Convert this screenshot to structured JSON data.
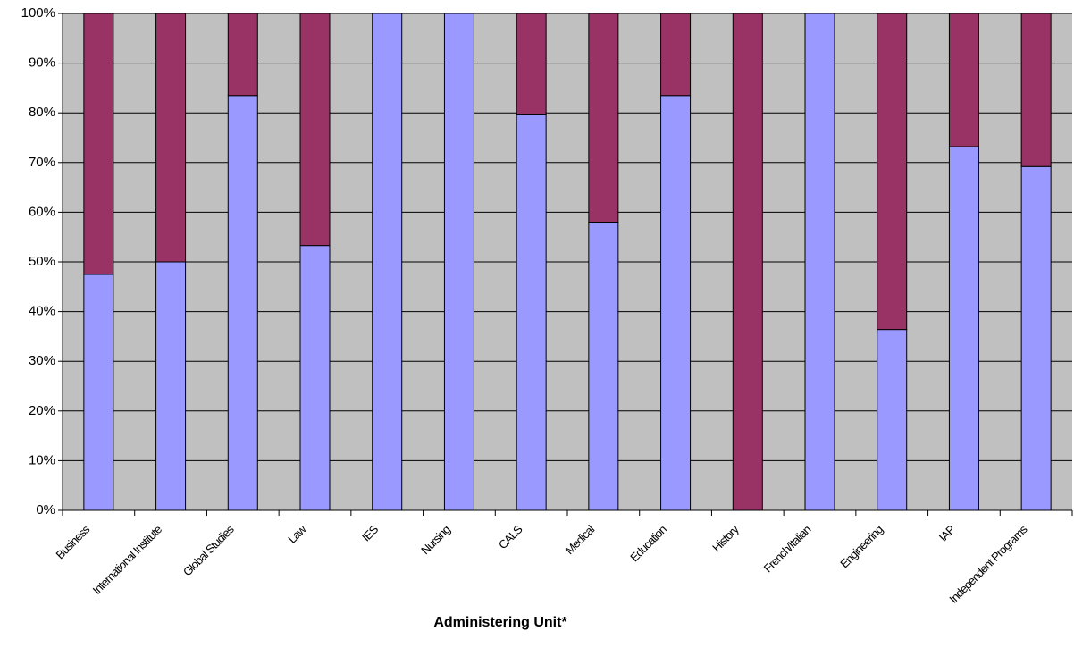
{
  "chart_data": {
    "type": "stacked-bar",
    "x_label": "Administering Unit*",
    "categories": [
      "Business",
      "International Institute",
      "Global Studies",
      "Law",
      "IES",
      "Nursing",
      "CALS",
      "Medical",
      "Education",
      "History",
      "French/Italian",
      "Engineering",
      "IAP",
      "Independent Programs"
    ],
    "series": [
      {
        "color": "#9999ff",
        "values": [
          47.5,
          50,
          83.5,
          53.3,
          100,
          100,
          79.6,
          58,
          83.5,
          0,
          100,
          36.4,
          73.2,
          69.2
        ]
      },
      {
        "color": "#993366",
        "values": [
          52.5,
          50,
          16.5,
          46.7,
          0,
          0,
          20.4,
          42,
          16.5,
          100,
          0,
          63.6,
          26.8,
          30.8
        ]
      }
    ],
    "ylim": [
      0,
      100
    ],
    "yticks": [
      {
        "value": 0,
        "label": "0%"
      },
      {
        "value": 10,
        "label": "10%"
      },
      {
        "value": 20,
        "label": "20%"
      },
      {
        "value": 30,
        "label": "30%"
      },
      {
        "value": 40,
        "label": "40%"
      },
      {
        "value": 50,
        "label": "50%"
      },
      {
        "value": 60,
        "label": "60%"
      },
      {
        "value": 70,
        "label": "70%"
      },
      {
        "value": 80,
        "label": "80%"
      },
      {
        "value": 90,
        "label": "90%"
      },
      {
        "value": 100,
        "label": "100%"
      }
    ],
    "grid": true
  }
}
